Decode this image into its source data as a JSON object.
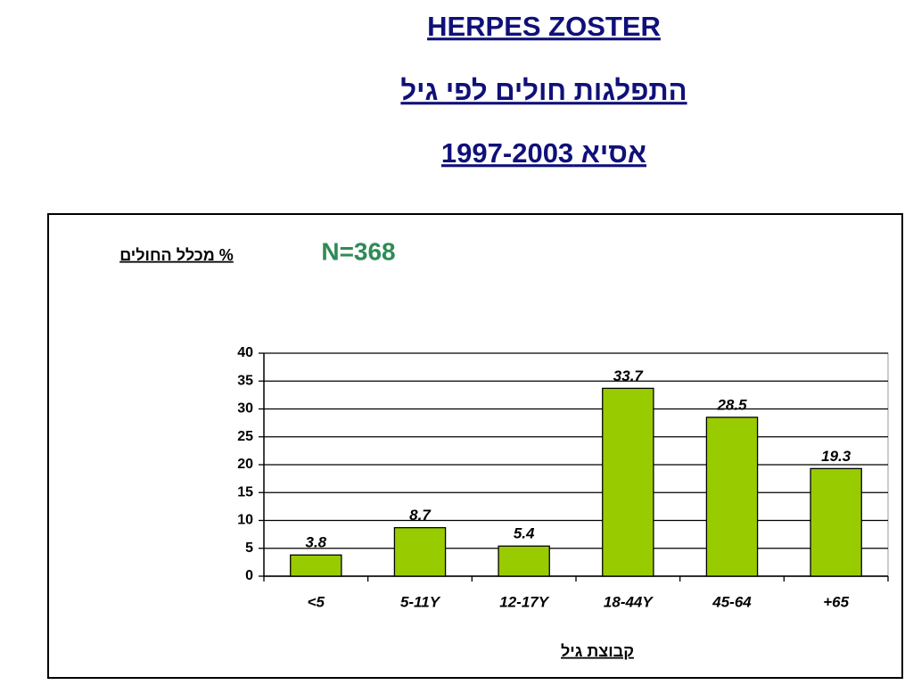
{
  "chart_data": {
    "type": "bar",
    "title": "HERPES ZOSTER",
    "subtitle": "התפלגות חולים לפי גיל",
    "subtitle2": "אסיא 1997-2003",
    "y_label": "% מכלל החולים",
    "x_label": "קבוצת גיל",
    "annotation": "N=368",
    "categories": [
      "<5",
      "5-11Y",
      "12-17Y",
      "18-44Y",
      "45-64",
      "+65"
    ],
    "values": [
      3.8,
      8.7,
      5.4,
      33.7,
      28.5,
      19.3
    ],
    "color": "#99cc00",
    "ylim": [
      0,
      40
    ],
    "yticks": [
      0,
      5,
      10,
      15,
      20,
      25,
      30,
      35,
      40
    ],
    "grid": true
  }
}
